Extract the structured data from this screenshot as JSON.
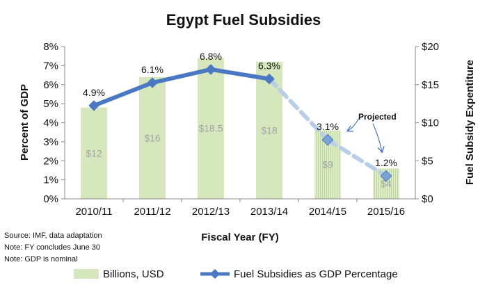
{
  "chart_data": {
    "type": "bar",
    "title": "Egypt Fuel Subsidies",
    "xlabel": "Fiscal Year (FY)",
    "ylabel_left": "Percent of GDP",
    "ylabel_right": "Fuel Subsidy Expentiture",
    "categories": [
      "2010/11",
      "2011/12",
      "2012/13",
      "2013/14",
      "2014/15",
      "2015/16"
    ],
    "y_left": {
      "min": 0,
      "max": 8,
      "step": 1,
      "ticks": [
        "0%",
        "1%",
        "2%",
        "3%",
        "4%",
        "5%",
        "6%",
        "7%",
        "8%"
      ]
    },
    "y_right": {
      "min": 0,
      "max": 20,
      "step": 5,
      "ticks": [
        "$0",
        "$5",
        "$10",
        "$15",
        "$20"
      ]
    },
    "series": [
      {
        "name": "Billions, USD",
        "kind": "bar",
        "axis": "right",
        "values": [
          12,
          16,
          18.5,
          18,
          9,
          4
        ],
        "labels": [
          "$12",
          "$16",
          "$18.5",
          "$18",
          "$9",
          "$4"
        ],
        "projected": [
          false,
          false,
          false,
          false,
          true,
          true
        ],
        "color": "#d6e6bd"
      },
      {
        "name": "Fuel Subsidies as GDP Percentage",
        "kind": "line",
        "axis": "left",
        "values": [
          4.9,
          6.1,
          6.8,
          6.3,
          3.1,
          1.2
        ],
        "labels": [
          "4.9%",
          "6.1%",
          "6.8%",
          "6.3%",
          "3.1%",
          "1.2%"
        ],
        "projected": [
          false,
          false,
          false,
          false,
          true,
          true
        ],
        "color": "#4a78c2",
        "projected_color": "#b8cde6"
      }
    ],
    "annotation": "Projected",
    "grid": false,
    "legend_position": "bottom"
  },
  "notes": [
    "Source: IMF, data adaptation",
    "Note: FY concludes June 30",
    "Note: GDP is nominal"
  ]
}
